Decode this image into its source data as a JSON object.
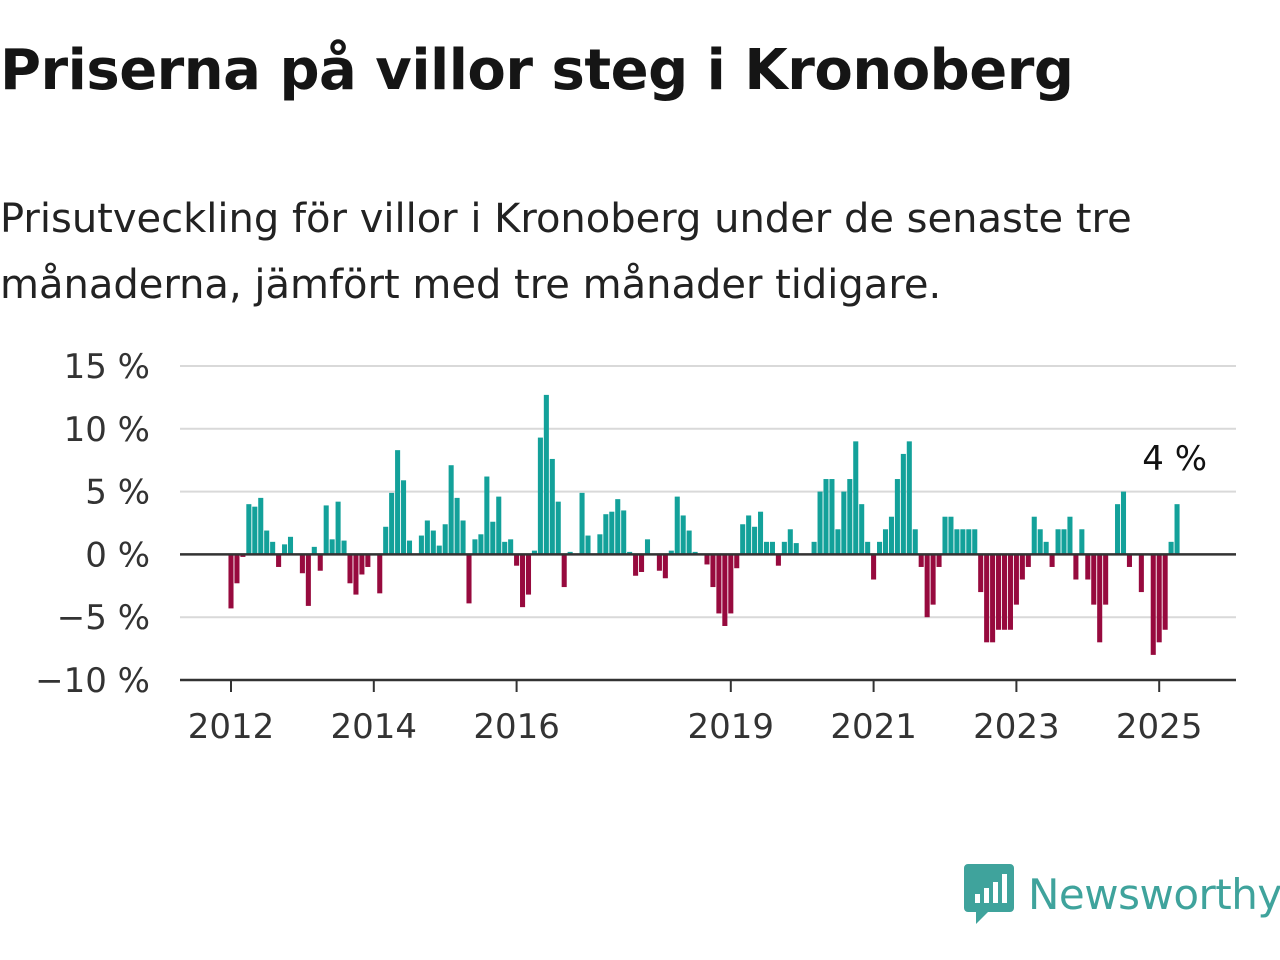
{
  "title": "Priserna på villor steg i Kronoberg",
  "subtitle": "Prisutveckling för villor i Kronoberg under de senaste tre månaderna, jämfört med tre månader tidigare.",
  "brand": {
    "name": "Newsworthy",
    "color": "#3fa39c",
    "icon": "chart-speech-bubble-icon"
  },
  "colors": {
    "positive": "#13a19a",
    "negative": "#970a3e",
    "grid": "#d9d9d9",
    "axis": "#333333"
  },
  "chart_data": {
    "type": "bar",
    "x_start": "2012-01",
    "x_step": "1 month",
    "ylim": [
      -10,
      15
    ],
    "y_ticks": [
      -10,
      -5,
      0,
      5,
      10,
      15
    ],
    "y_tick_labels": [
      "−10 %",
      "−5 %",
      "0 %",
      "5 %",
      "10 %",
      "15 %"
    ],
    "x_tick_labels": [
      {
        "label": "2012",
        "x": 2012
      },
      {
        "label": "2014",
        "x": 2014
      },
      {
        "label": "2016",
        "x": 2016
      },
      {
        "label": "2019",
        "x": 2019
      },
      {
        "label": "2021",
        "x": 2021
      },
      {
        "label": "2023",
        "x": 2023
      },
      {
        "label": "2025",
        "x": 2025
      }
    ],
    "annotation": {
      "text": "4 %",
      "at_last_value": true
    },
    "grid": true,
    "values": [
      -4.3,
      -2.3,
      -0.2,
      4.0,
      3.8,
      4.5,
      1.9,
      1.0,
      -1.0,
      0.8,
      1.4,
      0.0,
      -1.5,
      -4.1,
      0.6,
      -1.3,
      3.9,
      1.2,
      4.2,
      1.1,
      -2.3,
      -3.2,
      -1.6,
      -1.0,
      0.0,
      -3.1,
      2.2,
      4.9,
      8.3,
      5.9,
      1.1,
      0.0,
      1.5,
      2.7,
      1.9,
      0.7,
      2.4,
      7.1,
      4.5,
      2.7,
      -3.9,
      1.2,
      1.6,
      6.2,
      2.6,
      4.6,
      1.0,
      1.2,
      -0.9,
      -4.2,
      -3.2,
      0.3,
      9.3,
      12.7,
      7.6,
      4.2,
      -2.6,
      0.2,
      0.0,
      4.9,
      1.5,
      0.0,
      1.6,
      3.2,
      3.4,
      4.4,
      3.5,
      0.2,
      -1.7,
      -1.4,
      1.2,
      0.0,
      -1.3,
      -1.9,
      0.3,
      4.6,
      3.1,
      1.9,
      0.2,
      0.0,
      -0.8,
      -2.6,
      -4.7,
      -5.7,
      -4.7,
      -1.1,
      2.4,
      3.1,
      2.2,
      3.4,
      1.0,
      1.0,
      -0.9,
      1.0,
      2.0,
      0.9,
      0.0,
      0.0,
      1.0,
      5.0,
      6.0,
      6.0,
      2.0,
      5.0,
      6.0,
      9.0,
      4.0,
      1.0,
      -2.0,
      1.0,
      2.0,
      3.0,
      6.0,
      8.0,
      9.0,
      2.0,
      -1.0,
      -5.0,
      -4.0,
      -1.0,
      3.0,
      3.0,
      2.0,
      2.0,
      2.0,
      2.0,
      -3.0,
      -7.0,
      -7.0,
      -6.0,
      -6.0,
      -6.0,
      -4.0,
      -2.0,
      -1.0,
      3.0,
      2.0,
      1.0,
      -1.0,
      2.0,
      2.0,
      3.0,
      -2.0,
      2.0,
      -2.0,
      -4.0,
      -7.0,
      -4.0,
      0.0,
      4.0,
      5.0,
      -1.0,
      0.0,
      -3.0,
      0.0,
      -8.0,
      -7.0,
      -6.0,
      1.0,
      4.0
    ]
  }
}
